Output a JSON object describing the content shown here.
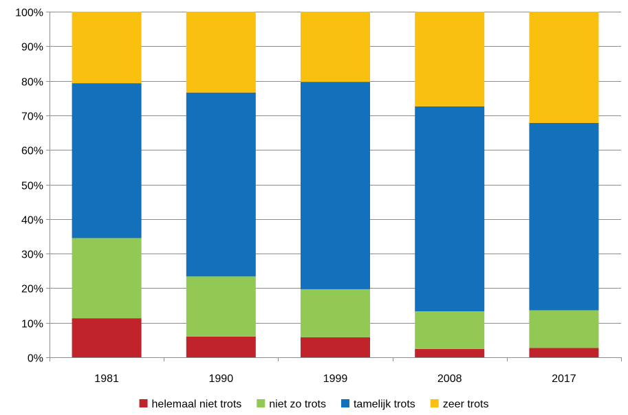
{
  "chart_data": {
    "type": "bar",
    "stacked": true,
    "percent_stacked": true,
    "categories": [
      "1981",
      "1990",
      "1999",
      "2008",
      "2017"
    ],
    "series": [
      {
        "name": "helemaal niet trots",
        "color": "#C0232A",
        "values": [
          11.3,
          6.0,
          5.8,
          2.4,
          2.7
        ]
      },
      {
        "name": "niet zo trots",
        "color": "#92C854",
        "values": [
          23.2,
          17.4,
          13.9,
          10.9,
          10.9
        ]
      },
      {
        "name": "tamelijk trots",
        "color": "#1370BA",
        "values": [
          44.8,
          53.2,
          60.0,
          59.3,
          54.2
        ]
      },
      {
        "name": "zeer trots",
        "color": "#FAC010",
        "values": [
          20.7,
          23.4,
          20.3,
          27.4,
          32.2
        ]
      }
    ],
    "y_ticks": [
      "0%",
      "10%",
      "20%",
      "30%",
      "40%",
      "50%",
      "60%",
      "70%",
      "80%",
      "90%",
      "100%"
    ],
    "ylim": [
      0,
      100
    ],
    "grid": true,
    "legend_position": "bottom",
    "title": "",
    "xlabel": "",
    "ylabel": ""
  }
}
